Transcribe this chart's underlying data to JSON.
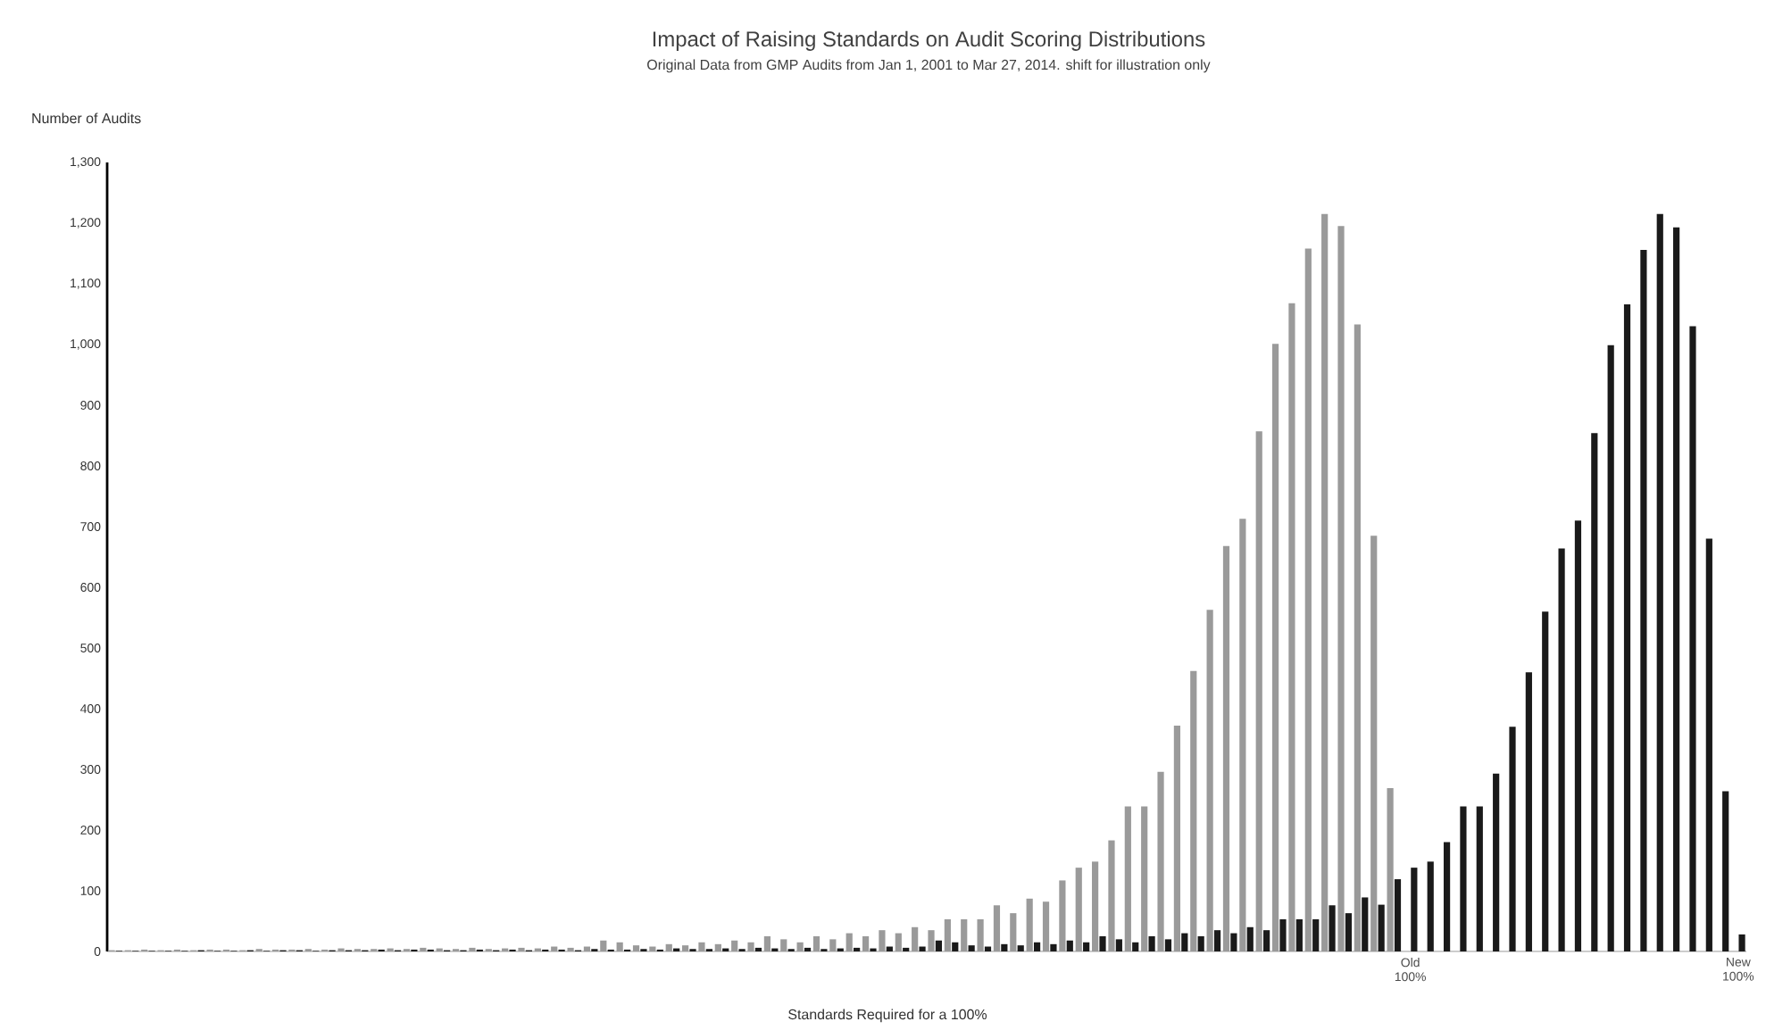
{
  "chart_data": {
    "type": "bar",
    "title": "Impact of Raising Standards on Audit Scoring Distributions",
    "subtitle": "Original Data from GMP Audits from Jan 1, 2001 to Mar 27, 2014. shift for illustration only",
    "xlabel": "Standards Required for a 100%",
    "ylabel": "Number of Audits",
    "categories": [
      null,
      null,
      null,
      null,
      null,
      null,
      null,
      null,
      null,
      null,
      null,
      null,
      null,
      null,
      null,
      null,
      null,
      null,
      null,
      null,
      null,
      null,
      null,
      null,
      null,
      null,
      null,
      null,
      null,
      null,
      null,
      null,
      null,
      null,
      null,
      null,
      null,
      null,
      null,
      null,
      null,
      null,
      null,
      null,
      null,
      null,
      null,
      null,
      null,
      null,
      null,
      null,
      null,
      null,
      null,
      null,
      null,
      null,
      null,
      null,
      null,
      null,
      null,
      null,
      null,
      null,
      null,
      null,
      null,
      null,
      null,
      null,
      null,
      null,
      null,
      null,
      null,
      null,
      null,
      "Old 100%",
      null,
      null,
      null,
      null,
      null,
      null,
      null,
      null,
      null,
      null,
      null,
      null,
      null,
      null,
      null,
      null,
      null,
      null,
      null,
      "New 100%"
    ],
    "series": [
      {
        "color": "#9a9a9a",
        "values": [
          2,
          2,
          3,
          2,
          3,
          2,
          3,
          3,
          2,
          4,
          3,
          3,
          4,
          3,
          5,
          4,
          4,
          5,
          4,
          6,
          5,
          4,
          6,
          4,
          5,
          6,
          5,
          8,
          6,
          8,
          18,
          15,
          10,
          8,
          12,
          10,
          15,
          12,
          18,
          15,
          25,
          20,
          15,
          25,
          20,
          30,
          25,
          35,
          30,
          40,
          35,
          53,
          53,
          53,
          76,
          63,
          87,
          82,
          117,
          138,
          148,
          183,
          239,
          239,
          296,
          372,
          462,
          563,
          668,
          713,
          857,
          1001,
          1068,
          1158,
          1215,
          1195,
          1033,
          685,
          269,
          null,
          null,
          null,
          null,
          null,
          null,
          null,
          null,
          null,
          null,
          null,
          null,
          null,
          null,
          null,
          null,
          null,
          null,
          null,
          null,
          null
        ]
      },
      {
        "color": "#1a1a1a",
        "values": [
          1,
          1,
          1,
          1,
          1,
          2,
          1,
          1,
          2,
          1,
          2,
          2,
          1,
          2,
          2,
          2,
          3,
          2,
          3,
          3,
          2,
          2,
          3,
          2,
          3,
          2,
          3,
          3,
          2,
          4,
          3,
          3,
          4,
          3,
          5,
          4,
          4,
          5,
          4,
          6,
          5,
          4,
          6,
          4,
          5,
          6,
          5,
          8,
          6,
          8,
          18,
          15,
          10,
          8,
          12,
          10,
          15,
          12,
          18,
          15,
          25,
          20,
          15,
          25,
          20,
          30,
          25,
          35,
          30,
          40,
          35,
          53,
          53,
          53,
          76,
          63,
          89,
          77,
          119,
          138,
          148,
          180,
          239,
          239,
          293,
          370,
          460,
          560,
          664,
          710,
          854,
          999,
          1066,
          1156,
          1215,
          1193,
          1030,
          680,
          264,
          28
        ]
      }
    ],
    "ylim": [
      0,
      1300
    ],
    "yticks": [
      0,
      100,
      200,
      300,
      400,
      500,
      600,
      700,
      800,
      900,
      {
        "value": 1000,
        "label": "1,000"
      },
      {
        "value": 1100,
        "label": "1,100"
      },
      {
        "value": 1200,
        "label": "1,200"
      },
      {
        "value": 1300,
        "label": "1,300"
      }
    ]
  }
}
